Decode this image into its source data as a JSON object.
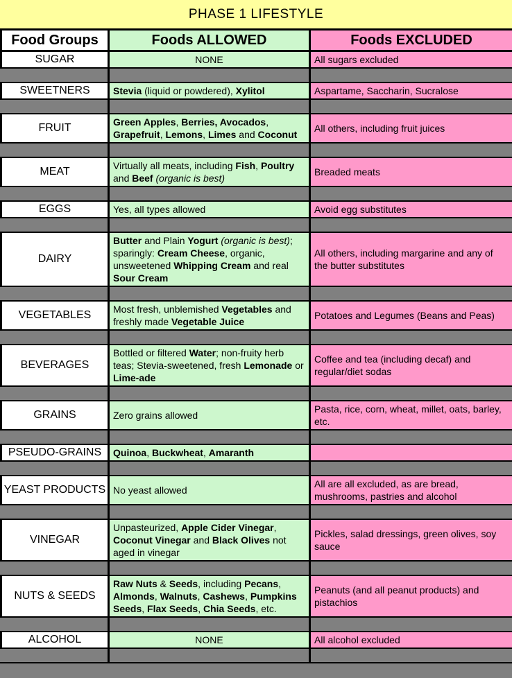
{
  "title": "PHASE 1 LIFESTYLE",
  "colors": {
    "title_bg": "#FFFF9E",
    "allowed_bg": "#CDF7CD",
    "excluded_bg": "#FF99CA",
    "separator_bg": "#808080",
    "group_bg": "#FFFFFF",
    "border": "#000000"
  },
  "header": {
    "food_groups": "Food Groups",
    "foods_allowed": "Foods ALLOWED",
    "foods_excluded": "Foods EXCLUDED"
  },
  "rows": [
    {
      "group": "SUGAR",
      "allowed": {
        "align": "center",
        "segments": [
          {
            "t": "NONE"
          }
        ]
      },
      "excluded": {
        "segments": [
          {
            "t": "All sugars excluded"
          }
        ]
      }
    },
    {
      "group": "SWEETNERS",
      "allowed": {
        "segments": [
          {
            "t": "Stevia",
            "b": 1
          },
          {
            "t": " (liquid or powdered), "
          },
          {
            "t": "Xylitol",
            "b": 1
          }
        ]
      },
      "excluded": {
        "segments": [
          {
            "t": "Aspartame, Saccharin, Sucralose"
          }
        ]
      }
    },
    {
      "group": "FRUIT",
      "allowed": {
        "segments": [
          {
            "t": "Green Apples",
            "b": 1
          },
          {
            "t": ", "
          },
          {
            "t": "Berries, Avocados",
            "b": 1
          },
          {
            "t": ", "
          },
          {
            "t": "Grapefruit",
            "b": 1
          },
          {
            "t": ", "
          },
          {
            "t": "Lemons",
            "b": 1
          },
          {
            "t": ", "
          },
          {
            "t": "Limes",
            "b": 1
          },
          {
            "t": " and "
          },
          {
            "t": "Coconut",
            "b": 1
          }
        ]
      },
      "excluded": {
        "segments": [
          {
            "t": "All others, including fruit juices"
          }
        ]
      }
    },
    {
      "group": "MEAT",
      "allowed": {
        "segments": [
          {
            "t": "Virtually all meats, including "
          },
          {
            "t": "Fish",
            "b": 1
          },
          {
            "t": ", "
          },
          {
            "t": "Poultry",
            "b": 1
          },
          {
            "t": " and "
          },
          {
            "t": "Beef",
            "b": 1
          },
          {
            "t": " "
          },
          {
            "t": "(organic is best)",
            "i": 1
          }
        ]
      },
      "excluded": {
        "segments": [
          {
            "t": "Breaded meats"
          }
        ]
      }
    },
    {
      "group": "EGGS",
      "allowed": {
        "segments": [
          {
            "t": "Yes, all types allowed"
          }
        ]
      },
      "excluded": {
        "segments": [
          {
            "t": "Avoid egg substitutes"
          }
        ]
      }
    },
    {
      "group": "DAIRY",
      "allowed": {
        "segments": [
          {
            "t": "Butter",
            "b": 1
          },
          {
            "t": " and Plain "
          },
          {
            "t": "Yogurt",
            "b": 1
          },
          {
            "t": " "
          },
          {
            "t": "(organic is best)",
            "i": 1
          },
          {
            "t": "; sparingly: "
          },
          {
            "t": "Cream Cheese",
            "b": 1
          },
          {
            "t": ", organic, unsweetened "
          },
          {
            "t": "Whipping Cream",
            "b": 1
          },
          {
            "t": " and real "
          },
          {
            "t": "Sour Cream",
            "b": 1
          }
        ]
      },
      "excluded": {
        "segments": [
          {
            "t": "All others, including margarine and any of the butter substitutes"
          }
        ]
      }
    },
    {
      "group": "VEGETABLES",
      "allowed": {
        "segments": [
          {
            "t": "Most fresh, unblemished "
          },
          {
            "t": "Vegetables",
            "b": 1
          },
          {
            "t": " and freshly made "
          },
          {
            "t": "Vegetable Juice",
            "b": 1
          }
        ]
      },
      "excluded": {
        "segments": [
          {
            "t": "Potatoes and Legumes (Beans and Peas)"
          }
        ]
      }
    },
    {
      "group": "BEVERAGES",
      "allowed": {
        "segments": [
          {
            "t": "Bottled or filtered "
          },
          {
            "t": "Water",
            "b": 1
          },
          {
            "t": "; non-fruity herb teas; Stevia-sweetened, fresh "
          },
          {
            "t": "Lemonade",
            "b": 1
          },
          {
            "t": " or "
          },
          {
            "t": "Lime-ade",
            "b": 1
          }
        ]
      },
      "excluded": {
        "segments": [
          {
            "t": "Coffee and tea (including decaf) and regular/diet sodas"
          }
        ]
      }
    },
    {
      "group": "GRAINS",
      "allowed": {
        "segments": [
          {
            "t": "Zero grains allowed"
          }
        ]
      },
      "excluded": {
        "segments": [
          {
            "t": "Pasta, rice, corn, wheat, millet, oats, barley, etc."
          }
        ]
      }
    },
    {
      "group": "PSEUDO-GRAINS",
      "allowed": {
        "segments": [
          {
            "t": "Quinoa",
            "b": 1
          },
          {
            "t": ", "
          },
          {
            "t": "Buckwheat",
            "b": 1
          },
          {
            "t": ", "
          },
          {
            "t": "Amaranth",
            "b": 1
          }
        ]
      },
      "excluded": {
        "segments": []
      }
    },
    {
      "group": "YEAST PRODUCTS",
      "allowed": {
        "segments": [
          {
            "t": "No yeast allowed"
          }
        ]
      },
      "excluded": {
        "segments": [
          {
            "t": "All are all excluded, as are bread, mushrooms, pastries and alcohol"
          }
        ]
      }
    },
    {
      "group": "VINEGAR",
      "allowed": {
        "segments": [
          {
            "t": "Unpasteurized, "
          },
          {
            "t": "Apple Cider Vinegar",
            "b": 1
          },
          {
            "t": ", "
          },
          {
            "t": "Coconut Vinegar",
            "b": 1
          },
          {
            "t": " and "
          },
          {
            "t": "Black Olives",
            "b": 1
          },
          {
            "t": " not aged in vinegar"
          }
        ]
      },
      "excluded": {
        "segments": [
          {
            "t": "Pickles, salad dressings, green olives, soy sauce"
          }
        ]
      }
    },
    {
      "group": "NUTS & SEEDS",
      "allowed": {
        "segments": [
          {
            "t": "Raw Nuts",
            "b": 1
          },
          {
            "t": " & "
          },
          {
            "t": "Seeds",
            "b": 1
          },
          {
            "t": ", including "
          },
          {
            "t": "Pecans",
            "b": 1
          },
          {
            "t": ", "
          },
          {
            "t": "Almonds",
            "b": 1
          },
          {
            "t": ", "
          },
          {
            "t": "Walnuts",
            "b": 1
          },
          {
            "t": ", "
          },
          {
            "t": "Cashews",
            "b": 1
          },
          {
            "t": ", "
          },
          {
            "t": "Pumpkins Seeds",
            "b": 1
          },
          {
            "t": ", "
          },
          {
            "t": "Flax Seeds",
            "b": 1
          },
          {
            "t": ", "
          },
          {
            "t": "Chia Seeds",
            "b": 1
          },
          {
            "t": ", etc."
          }
        ]
      },
      "excluded": {
        "segments": [
          {
            "t": "Peanuts (and all peanut products) and pistachios"
          }
        ]
      }
    },
    {
      "group": "ALCOHOL",
      "allowed": {
        "align": "center",
        "segments": [
          {
            "t": "NONE"
          }
        ]
      },
      "excluded": {
        "segments": [
          {
            "t": "All alcohol excluded"
          }
        ]
      }
    }
  ]
}
